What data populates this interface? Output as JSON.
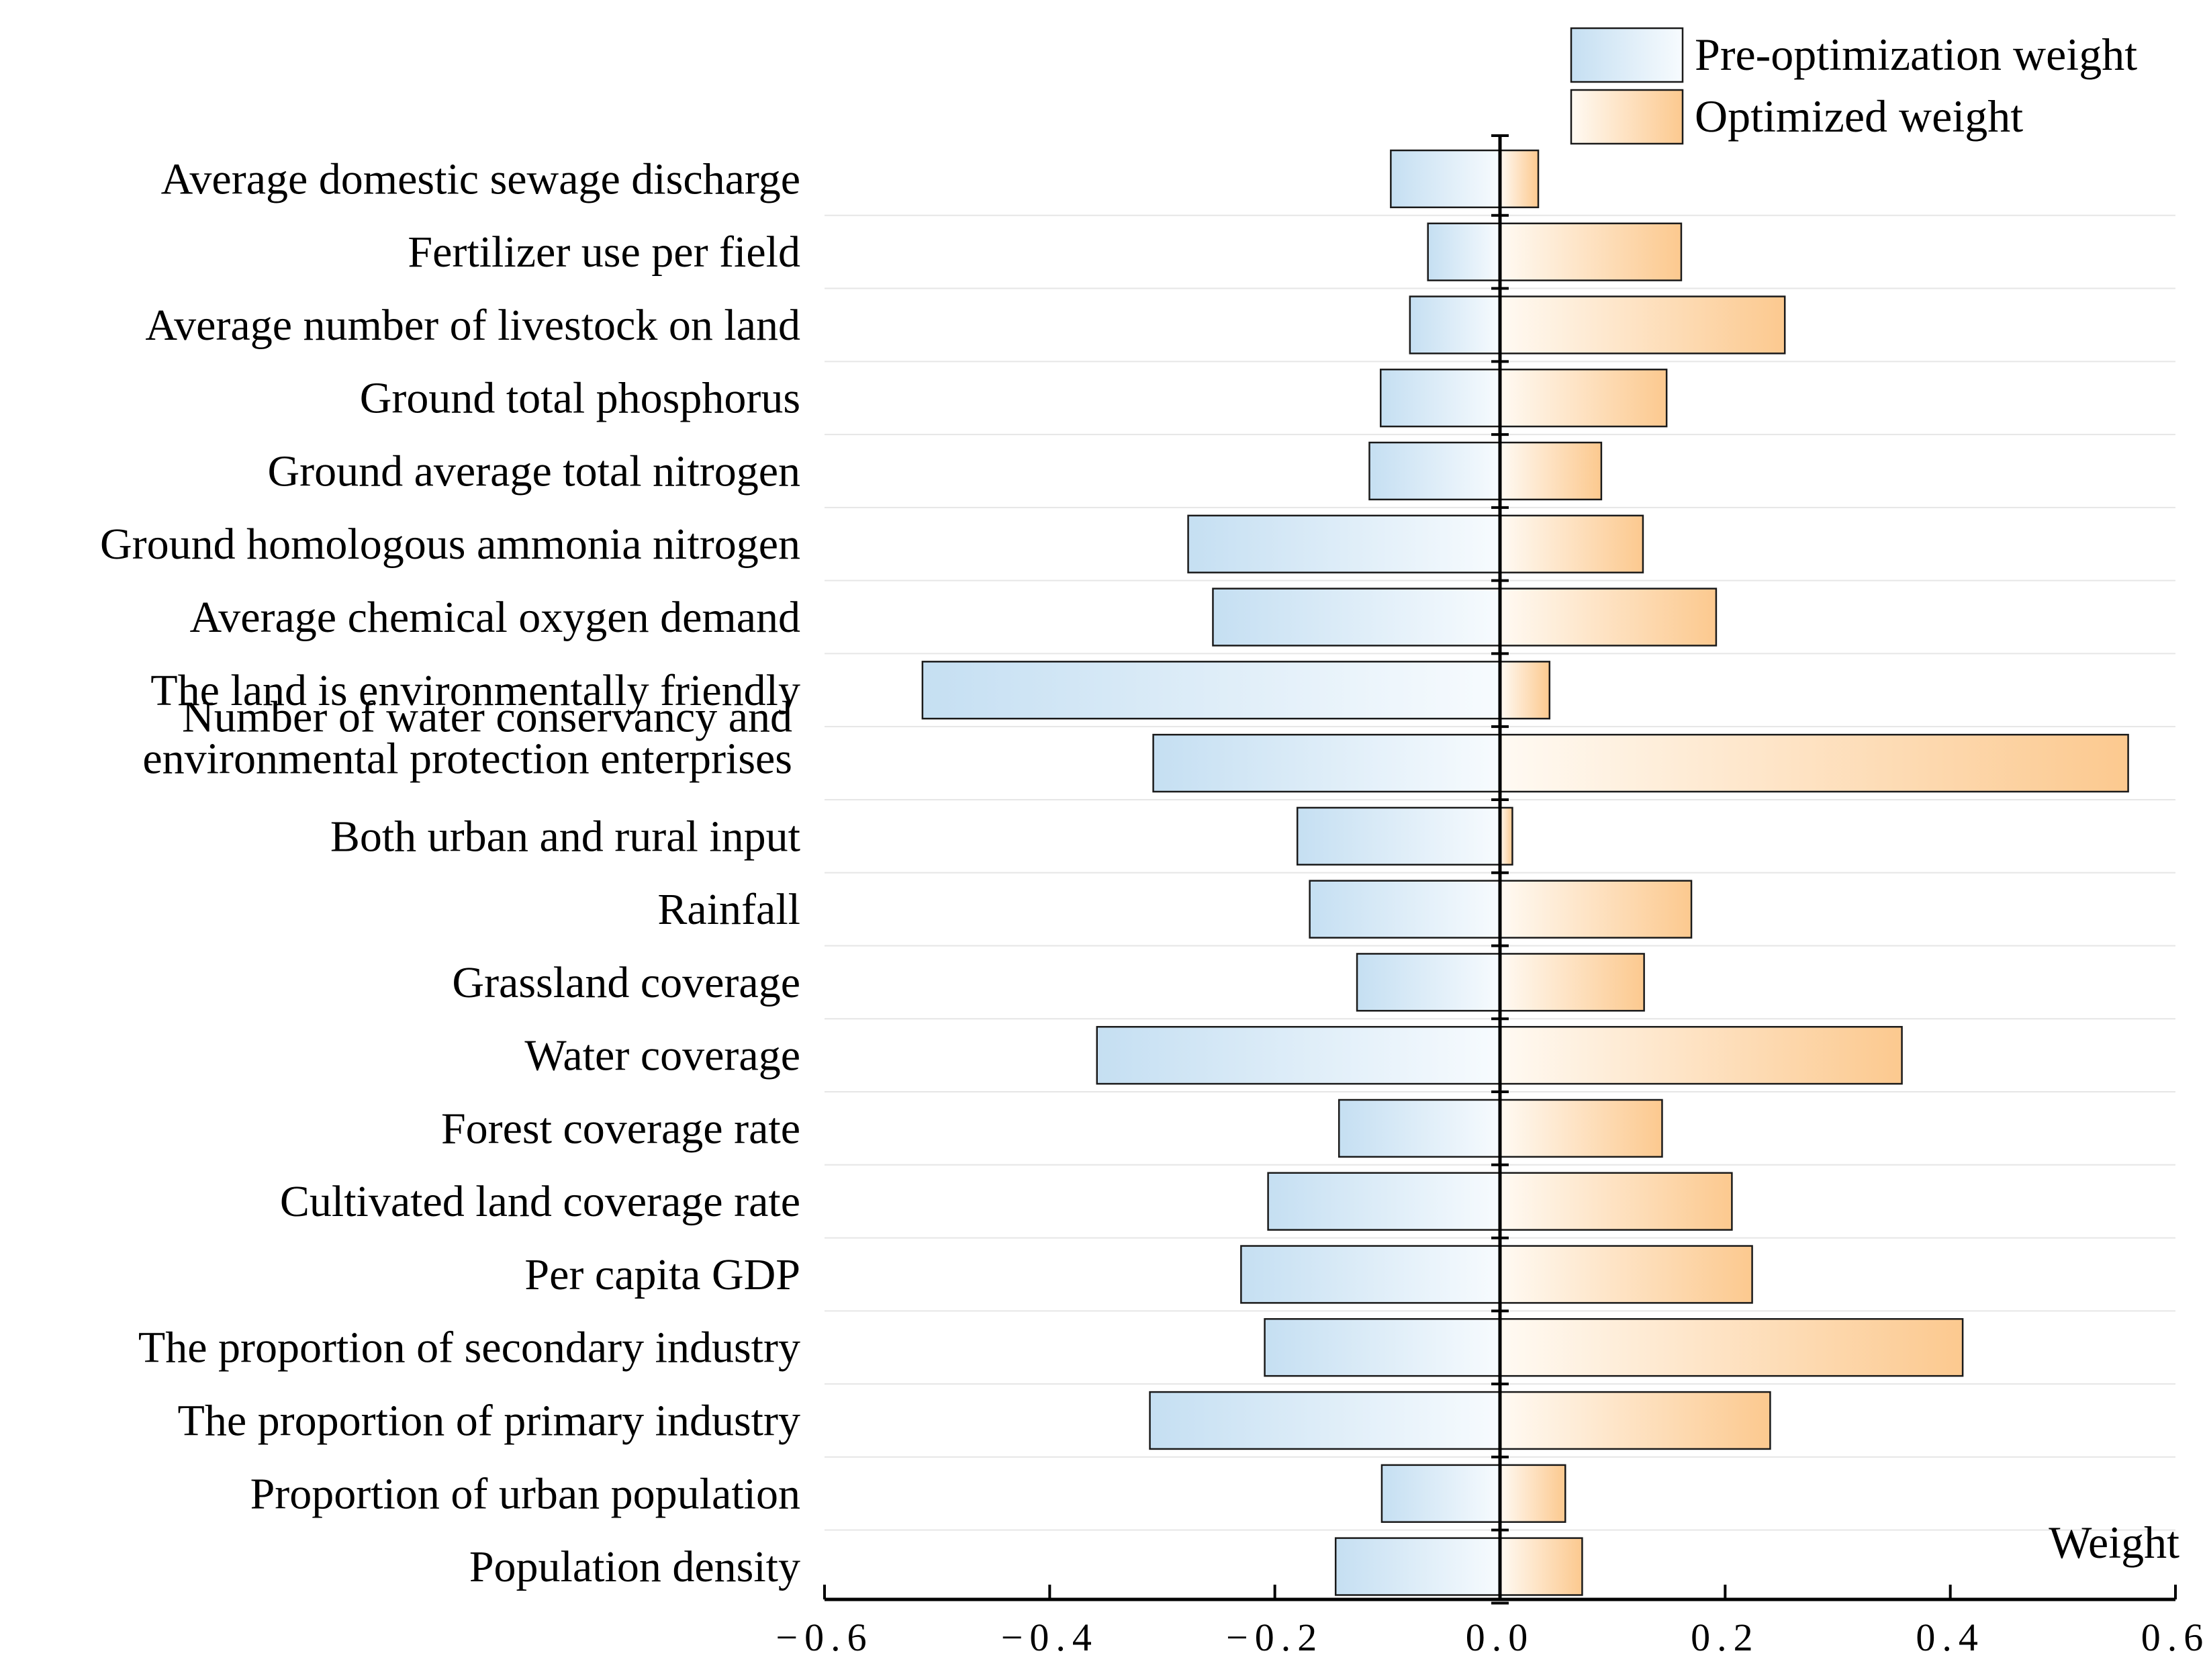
{
  "chart_data": {
    "type": "bar",
    "orientation": "horizontal",
    "title": "",
    "xlabel": "Weight",
    "ylabel": "",
    "xlim": [
      -0.6,
      0.6
    ],
    "xticks": [
      -0.6,
      -0.4,
      -0.2,
      0.0,
      0.2,
      0.4,
      0.6
    ],
    "xtick_labels": [
      "−0.6",
      "−0.4",
      "−0.2",
      "0.0",
      "0.2",
      "0.4",
      "0.6"
    ],
    "grid": "horizontal",
    "legend_position": "top-right",
    "categories": [
      "Average domestic sewage discharge",
      "Fertilizer use per field",
      "Average number of livestock on land",
      "Ground total phosphorus",
      "Ground average total nitrogen",
      "Ground homologous ammonia nitrogen",
      "Average chemical oxygen demand",
      "The land is environmentally friendly",
      "Number of water conservancy and\nenvironmental protection enterprises",
      "Both urban and rural input",
      "Rainfall",
      "Grassland coverage",
      "Water coverage",
      "Forest coverage rate",
      "Cultivated land coverage rate",
      "Per capita GDP",
      "The proportion of secondary industry",
      "The proportion of primary industry",
      "Proportion of urban population",
      "Population density"
    ],
    "series": [
      {
        "name": "Pre-optimization weight",
        "color_start": "#c5dff2",
        "color_end": "#f7fbfe",
        "values": [
          -0.097,
          -0.064,
          -0.08,
          -0.106,
          -0.116,
          -0.277,
          -0.255,
          -0.513,
          -0.308,
          -0.18,
          -0.169,
          -0.127,
          -0.358,
          -0.143,
          -0.206,
          -0.23,
          -0.209,
          -0.311,
          -0.105,
          -0.146
        ]
      },
      {
        "name": "Optimized weight",
        "color_start": "#fffaf3",
        "color_end": "#fcc98f",
        "values": [
          0.034,
          0.161,
          0.253,
          0.148,
          0.09,
          0.127,
          0.192,
          0.044,
          0.558,
          0.011,
          0.17,
          0.128,
          0.357,
          0.144,
          0.206,
          0.224,
          0.411,
          0.24,
          0.058,
          0.073
        ]
      }
    ]
  }
}
